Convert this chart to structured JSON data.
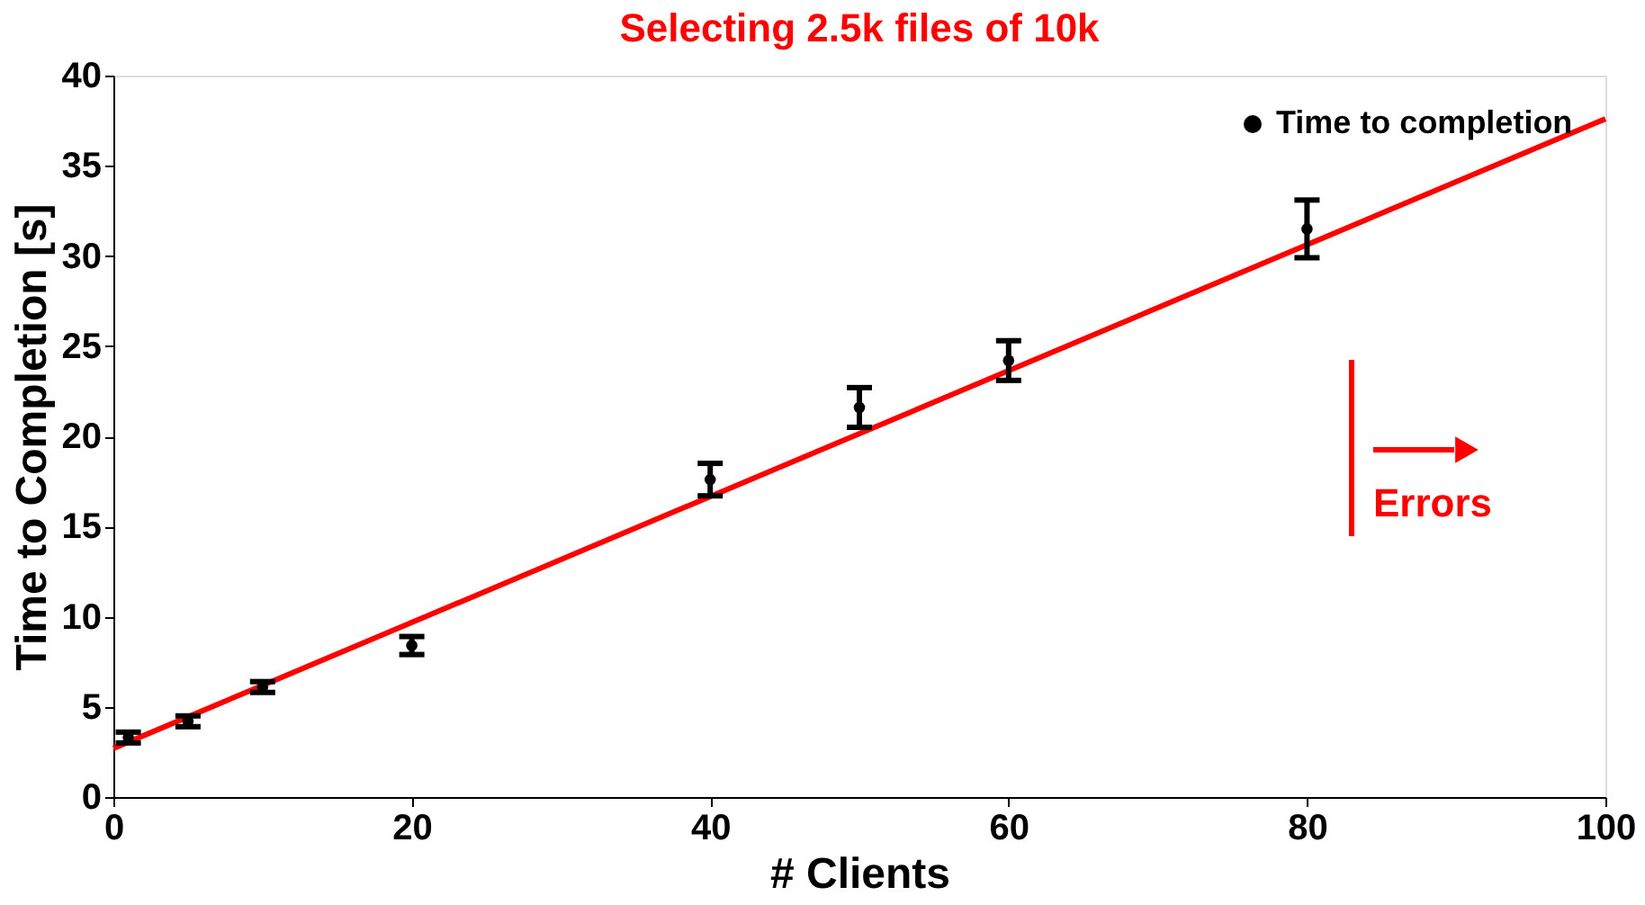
{
  "chart_data": {
    "type": "scatter",
    "title": "Selecting 2.5k files of 10k",
    "xlabel": "# Clients",
    "ylabel": "Time to Completion [s]",
    "series": [
      {
        "name": "Time to completion",
        "marker": "circle",
        "color": "#000000",
        "x": [
          1,
          5,
          10,
          20,
          40,
          50,
          60,
          80
        ],
        "values": [
          3.3,
          4.2,
          6.1,
          8.4,
          17.6,
          21.6,
          24.2,
          31.5
        ],
        "errors": [
          0.3,
          0.3,
          0.3,
          0.5,
          0.9,
          1.1,
          1.1,
          1.6
        ]
      },
      {
        "type": "line",
        "marker": "none",
        "color": "#ff0000",
        "x": [
          0,
          100
        ],
        "values": [
          2.7,
          37.6
        ]
      }
    ],
    "annotations": [
      "Errors"
    ],
    "xlim": [
      0,
      100
    ],
    "xticks": [
      0,
      20,
      40,
      60,
      80,
      100
    ],
    "ylim": [
      0,
      40
    ],
    "yticks": [
      0,
      5,
      10,
      15,
      20,
      25,
      30,
      35,
      40
    ],
    "grid": false,
    "legend": "top right",
    "line_style": "solid"
  }
}
